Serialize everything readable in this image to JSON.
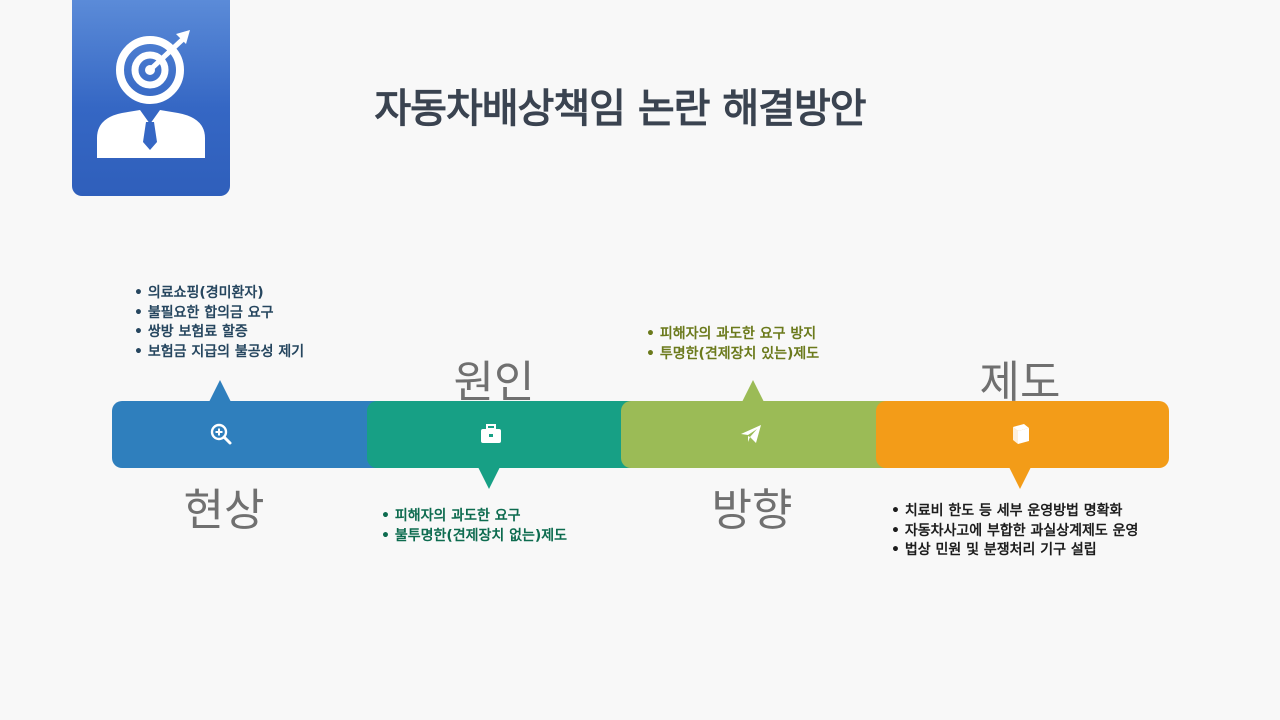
{
  "title": "자동차배상책임 논란 해결방안",
  "stages": [
    {
      "label": "현상",
      "color": "#2f7fbd",
      "icon": "magnifier-plus-icon",
      "notes": [
        "의료쇼핑(경미환자)",
        "불필요한 합의금 요구",
        "쌍방 보험료 할증",
        "보험금 지급의 불공성 제기"
      ]
    },
    {
      "label": "원인",
      "color": "#17a085",
      "icon": "briefcase-icon",
      "notes": [
        "피해자의 과도한 요구",
        "불투명한(견제장치 없는)제도"
      ]
    },
    {
      "label": "방향",
      "color": "#9bbb56",
      "icon": "paper-plane-icon",
      "notes": [
        "피해자의 과도한 요구 방지",
        "투명한(견제장치 있는)제도"
      ]
    },
    {
      "label": "제도",
      "color": "#f39c18",
      "icon": "book-icon",
      "notes": [
        "치료비 한도 등 세부 운영방법 명확화",
        "자동차사고에 부합한 과실상계제도 운영",
        "법상 민원 및 분쟁처리 기구 설립"
      ]
    }
  ]
}
